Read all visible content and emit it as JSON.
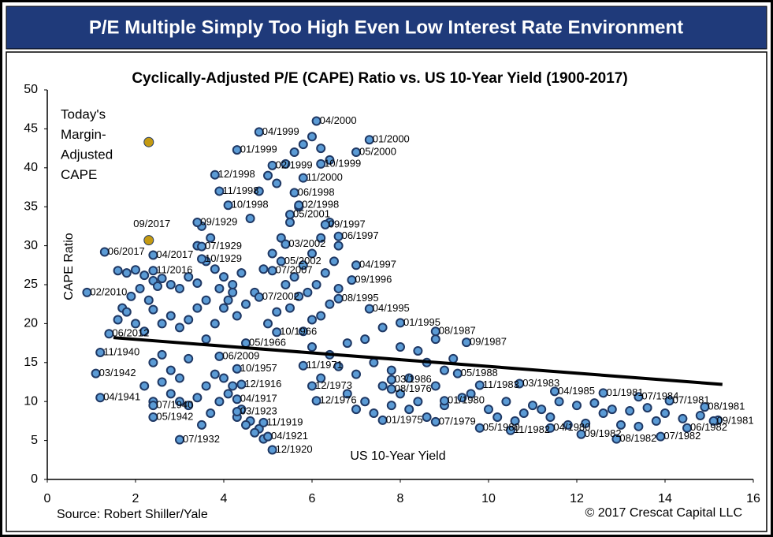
{
  "header": {
    "title": "P/E Multiple Simply Too High Even Low Interest Rate Environment"
  },
  "chart_data": {
    "type": "scatter",
    "title": "Cyclically-Adjusted P/E (CAPE) Ratio vs. US 10-Year Yield (1900-2017)",
    "x_label": "US 10-Year Yield",
    "y_label": "CAPE Ratio",
    "xlim": [
      0,
      16
    ],
    "xticks": [
      0,
      2,
      4,
      6,
      8,
      10,
      12,
      14,
      16
    ],
    "ylim": [
      0,
      50
    ],
    "yticks": [
      0,
      5,
      10,
      15,
      20,
      25,
      30,
      35,
      40,
      45,
      50
    ],
    "color": "#5b9bd5",
    "edge_color": "#1f3864",
    "highlight_color": "#c49a12",
    "trend_color": "#000000",
    "points": {
      "x": [
        1.6,
        1.8,
        2.0,
        2.2,
        2.4,
        1.7,
        1.9,
        2.1,
        2.3,
        2.5,
        1.6,
        1.8,
        2.0,
        2.2,
        2.4,
        2.6,
        2.8,
        3.0,
        3.2,
        3.4,
        2.6,
        2.8,
        3.0,
        3.2,
        3.4,
        3.6,
        2.4,
        2.6,
        2.8,
        3.0,
        3.2,
        2.2,
        2.4,
        2.6,
        2.8,
        3.0,
        3.2,
        3.4,
        3.6,
        3.8,
        4.0,
        4.2,
        4.4,
        4.6,
        4.8,
        5.0,
        3.5,
        3.7,
        3.9,
        4.1,
        4.3,
        4.5,
        4.7,
        4.9,
        3.6,
        3.8,
        4.0,
        4.2,
        3.4,
        3.6,
        3.8,
        4.0,
        4.2,
        4.4,
        3.5,
        3.7,
        3.9,
        4.1,
        4.3,
        4.5,
        4.7,
        4.9,
        5.1,
        5.3,
        5.5,
        5.7,
        4.6,
        4.8,
        5.0,
        5.2,
        5.4,
        5.6,
        5.8,
        6.0,
        6.2,
        6.4,
        5.0,
        5.2,
        5.4,
        5.6,
        5.8,
        6.0,
        6.2,
        6.4,
        6.6,
        5.5,
        5.7,
        5.9,
        6.1,
        6.3,
        6.5,
        5.8,
        6.0,
        6.2,
        6.4,
        6.6,
        6.0,
        6.4,
        6.8,
        7.2,
        7.6,
        8.0,
        8.4,
        8.8,
        9.2,
        6.2,
        6.6,
        7.0,
        7.4,
        7.8,
        8.2,
        8.6,
        9.0,
        6.8,
        7.2,
        7.6,
        8.0,
        8.4,
        8.8,
        7.0,
        7.4,
        7.8,
        8.2,
        8.6,
        9.0,
        9.4,
        9.6,
        10.0,
        10.4,
        10.8,
        11.2,
        11.6,
        12.0,
        12.4,
        12.8,
        13.2,
        13.6,
        14.0,
        14.4,
        14.8,
        15.2,
        10.2,
        10.6,
        11.0,
        11.4,
        11.8,
        12.2,
        12.6,
        13.0,
        13.4,
        13.8
      ],
      "y": [
        26.8,
        26.5,
        26.9,
        26.2,
        25.5,
        22,
        23.5,
        24.5,
        23,
        24.8,
        20.5,
        21.5,
        20,
        19,
        21.8,
        25.8,
        25,
        24.5,
        26,
        25.2,
        20,
        21,
        19.5,
        20.5,
        22,
        23,
        15,
        16,
        14,
        13,
        15.5,
        12,
        10,
        12.5,
        11,
        10,
        9.5,
        10.5,
        12,
        13.5,
        13,
        12,
        9,
        7.5,
        6.5,
        5.5,
        7,
        8.5,
        10,
        11,
        8,
        7,
        6,
        5.2,
        18,
        20,
        22,
        24,
        30,
        28,
        27,
        26,
        25,
        26.5,
        32.5,
        31,
        24.5,
        23,
        21,
        22.5,
        24,
        27,
        29,
        31,
        33,
        35,
        33.5,
        37,
        39,
        38,
        40.5,
        42,
        43,
        44,
        42.5,
        41,
        20,
        21.5,
        25,
        26,
        27.5,
        29,
        31,
        33,
        30,
        22,
        23.5,
        24,
        25,
        26.5,
        28,
        19,
        20.5,
        21,
        22.5,
        24.5,
        17,
        16,
        17.5,
        18,
        19.5,
        17,
        16.5,
        18,
        15.5,
        13,
        14.5,
        13.5,
        15,
        14,
        13,
        15,
        14,
        11,
        10,
        12,
        11,
        10,
        12,
        9,
        8.5,
        9.5,
        9,
        8,
        9.5,
        10.5,
        11,
        9,
        10,
        8.5,
        9,
        10,
        9.5,
        9.8,
        9,
        8.8,
        9.2,
        8.5,
        7.8,
        8.2,
        7.6,
        8,
        7.5,
        9.5,
        8,
        7,
        7.2,
        8.5,
        7,
        6.8,
        7.5
      ]
    },
    "labeled_points": [
      {
        "label": "04/1999",
        "x": 4.8,
        "y": 44.6
      },
      {
        "label": "04/2000",
        "x": 6.1,
        "y": 46.0
      },
      {
        "label": "01/2000",
        "x": 7.3,
        "y": 43.6
      },
      {
        "label": "05/2000",
        "x": 7.0,
        "y": 42.0
      },
      {
        "label": "01/1999",
        "x": 4.3,
        "y": 42.3
      },
      {
        "label": "02/1999",
        "x": 5.1,
        "y": 40.3
      },
      {
        "label": "10/1999",
        "x": 6.2,
        "y": 40.5
      },
      {
        "label": "12/1998",
        "x": 3.8,
        "y": 39.1
      },
      {
        "label": "11/2000",
        "x": 5.8,
        "y": 38.7
      },
      {
        "label": "11/1998",
        "x": 3.9,
        "y": 37.0
      },
      {
        "label": "06/1998",
        "x": 5.6,
        "y": 36.8
      },
      {
        "label": "10/1998",
        "x": 4.1,
        "y": 35.2
      },
      {
        "label": "02/1998",
        "x": 5.7,
        "y": 35.2
      },
      {
        "label": "09/1929",
        "x": 3.4,
        "y": 33.0
      },
      {
        "label": "05/2001",
        "x": 5.5,
        "y": 34.0
      },
      {
        "label": "09/1997",
        "x": 6.3,
        "y": 32.7
      },
      {
        "label": "06/1997",
        "x": 6.6,
        "y": 31.2
      },
      {
        "label": "07/1929",
        "x": 3.5,
        "y": 29.9
      },
      {
        "label": "06/2017",
        "x": 1.3,
        "y": 29.2
      },
      {
        "label": "04/2017",
        "x": 2.4,
        "y": 28.8
      },
      {
        "label": "10/1929",
        "x": 3.5,
        "y": 28.3
      },
      {
        "label": "03/2002",
        "x": 5.4,
        "y": 30.2
      },
      {
        "label": "05/2002",
        "x": 5.3,
        "y": 28.0
      },
      {
        "label": "04/1997",
        "x": 7.0,
        "y": 27.5
      },
      {
        "label": "11/2016",
        "x": 2.4,
        "y": 26.8
      },
      {
        "label": "07/2007",
        "x": 5.1,
        "y": 26.8
      },
      {
        "label": "09/1996",
        "x": 6.9,
        "y": 25.6
      },
      {
        "label": "02/2010",
        "x": 0.9,
        "y": 24.0
      },
      {
        "label": "07/2002",
        "x": 4.8,
        "y": 23.4
      },
      {
        "label": "08/1995",
        "x": 6.6,
        "y": 23.2
      },
      {
        "label": "04/1995",
        "x": 7.3,
        "y": 21.9
      },
      {
        "label": "01/1995",
        "x": 8.0,
        "y": 20.1
      },
      {
        "label": "08/1987",
        "x": 8.8,
        "y": 19.0
      },
      {
        "label": "09/1987",
        "x": 9.5,
        "y": 17.6
      },
      {
        "label": "10/1966",
        "x": 5.2,
        "y": 18.9
      },
      {
        "label": "06/2012",
        "x": 1.4,
        "y": 18.7
      },
      {
        "label": "05/1966",
        "x": 4.5,
        "y": 17.5
      },
      {
        "label": "11/1940",
        "x": 1.2,
        "y": 16.3
      },
      {
        "label": "06/2009",
        "x": 3.9,
        "y": 15.8
      },
      {
        "label": "11/1971",
        "x": 5.8,
        "y": 14.6
      },
      {
        "label": "03/1942",
        "x": 1.1,
        "y": 13.6
      },
      {
        "label": "10/1957",
        "x": 4.3,
        "y": 14.2
      },
      {
        "label": "05/1988",
        "x": 9.3,
        "y": 13.6
      },
      {
        "label": "03/1986",
        "x": 7.8,
        "y": 12.8
      },
      {
        "label": "12/1916",
        "x": 4.4,
        "y": 12.2
      },
      {
        "label": "12/1973",
        "x": 6.0,
        "y": 12.0
      },
      {
        "label": "08/1976",
        "x": 7.8,
        "y": 11.6
      },
      {
        "label": "11/1983",
        "x": 9.8,
        "y": 12.1
      },
      {
        "label": "03/1983",
        "x": 10.7,
        "y": 12.3
      },
      {
        "label": "04/1985",
        "x": 11.5,
        "y": 11.3
      },
      {
        "label": "01/1981",
        "x": 12.6,
        "y": 11.1
      },
      {
        "label": "07/1984",
        "x": 13.4,
        "y": 10.6
      },
      {
        "label": "07/1981",
        "x": 14.1,
        "y": 10.1
      },
      {
        "label": "08/1981",
        "x": 14.9,
        "y": 9.3
      },
      {
        "label": "09/1981",
        "x": 15.1,
        "y": 7.5
      },
      {
        "label": "04/1941",
        "x": 1.2,
        "y": 10.5
      },
      {
        "label": "04/1917",
        "x": 4.3,
        "y": 10.3
      },
      {
        "label": "12/1976",
        "x": 6.1,
        "y": 10.1
      },
      {
        "label": "01/1980",
        "x": 9.0,
        "y": 10.1
      },
      {
        "label": "07/1940",
        "x": 2.4,
        "y": 9.5
      },
      {
        "label": "05/1942",
        "x": 2.4,
        "y": 8.0
      },
      {
        "label": "03/1923",
        "x": 4.3,
        "y": 8.7
      },
      {
        "label": "01/1975",
        "x": 7.6,
        "y": 7.6
      },
      {
        "label": "07/1979",
        "x": 8.8,
        "y": 7.4
      },
      {
        "label": "11/1919",
        "x": 4.9,
        "y": 7.3
      },
      {
        "label": "05/1980",
        "x": 9.8,
        "y": 6.6
      },
      {
        "label": "11/1982",
        "x": 10.5,
        "y": 6.3
      },
      {
        "label": "04/1980",
        "x": 11.4,
        "y": 6.6
      },
      {
        "label": "06/1982",
        "x": 14.5,
        "y": 6.6
      },
      {
        "label": "09/1982",
        "x": 12.1,
        "y": 5.8
      },
      {
        "label": "07/1932",
        "x": 3.0,
        "y": 5.1
      },
      {
        "label": "04/1921",
        "x": 5.0,
        "y": 5.5
      },
      {
        "label": "08/1982",
        "x": 12.9,
        "y": 5.2
      },
      {
        "label": "07/1982",
        "x": 13.9,
        "y": 5.5
      },
      {
        "label": "12/1920",
        "x": 5.1,
        "y": 3.8
      }
    ],
    "highlight_points": [
      {
        "x": 2.3,
        "y": 43.3
      },
      {
        "label": "09/2017",
        "x": 2.3,
        "y": 30.7
      }
    ],
    "trendline": {
      "x": [
        1.5,
        15.3
      ],
      "y": [
        18.2,
        12.2
      ]
    },
    "annotation": [
      "Today's",
      "Margin-",
      "Adjusted",
      "CAPE"
    ],
    "source": "Source: Robert Shiller/Yale",
    "copyright": "© 2017 Crescat Capital LLC"
  }
}
